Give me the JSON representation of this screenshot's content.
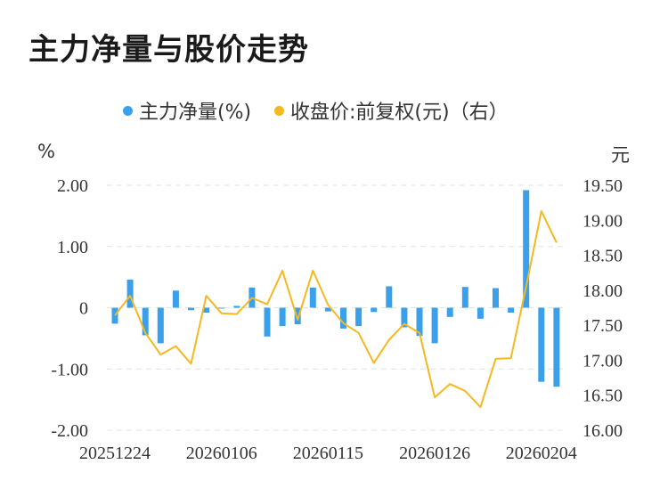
{
  "title": "主力净量与股价走势",
  "legend": {
    "net_flow_label": "主力净量(%)",
    "price_label": "收盘价:前复权(元)（右）"
  },
  "units": {
    "left": "%",
    "right": "元"
  },
  "colors": {
    "bar": "#3aa0eb",
    "line": "#f5b821",
    "grid": "#e3e3e3",
    "text": "#333333"
  },
  "chart_data": {
    "type": "bar+line",
    "x_tick_labels": [
      "20251224",
      "20260106",
      "20260115",
      "20260126",
      "20260204"
    ],
    "y_left": {
      "ticks": [
        "2.00",
        "1.00",
        "0",
        "-1.00",
        "-2.00"
      ],
      "range": [
        -2,
        2
      ]
    },
    "y_right": {
      "ticks": [
        "19.50",
        "19.00",
        "18.50",
        "18.00",
        "17.50",
        "17.00",
        "16.50",
        "16.00"
      ],
      "range": [
        16.0,
        19.5
      ]
    },
    "series": [
      {
        "name": "主力净量(%)",
        "type": "bar",
        "axis": "left",
        "values": [
          -0.26,
          0.46,
          -0.45,
          -0.58,
          0.28,
          -0.04,
          -0.08,
          0.0,
          0.03,
          0.33,
          -0.47,
          -0.3,
          -0.27,
          0.33,
          -0.06,
          -0.34,
          -0.3,
          -0.07,
          0.35,
          -0.32,
          -0.46,
          -0.58,
          -0.15,
          0.34,
          -0.18,
          0.32,
          -0.08,
          1.92,
          -1.21,
          -1.29
        ]
      },
      {
        "name": "收盘价:前复权(元)（右）",
        "type": "line",
        "axis": "right",
        "values": [
          17.64,
          17.92,
          17.39,
          17.08,
          17.2,
          16.95,
          17.92,
          17.67,
          17.66,
          17.89,
          17.8,
          18.28,
          17.58,
          18.28,
          17.79,
          17.53,
          17.39,
          16.96,
          17.29,
          17.52,
          17.39,
          16.47,
          16.66,
          16.56,
          16.33,
          17.02,
          17.03,
          18.05,
          19.13,
          18.68
        ]
      }
    ]
  }
}
